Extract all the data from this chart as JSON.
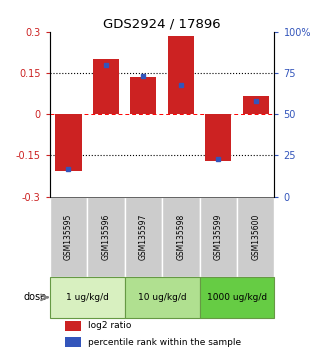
{
  "title": "GDS2924 / 17896",
  "samples": [
    "GSM135595",
    "GSM135596",
    "GSM135597",
    "GSM135598",
    "GSM135599",
    "GSM135600"
  ],
  "log2_ratio": [
    -0.205,
    0.2,
    0.135,
    0.285,
    -0.17,
    0.065
  ],
  "percentile": [
    17,
    80,
    73,
    68,
    23,
    58
  ],
  "dose_groups": [
    {
      "label": "1 ug/kg/d",
      "samples": [
        0,
        1
      ]
    },
    {
      "label": "10 ug/kg/d",
      "samples": [
        2,
        3
      ]
    },
    {
      "label": "1000 ug/kg/d",
      "samples": [
        4,
        5
      ]
    }
  ],
  "ylim_left": [
    -0.3,
    0.3
  ],
  "ylim_right": [
    0,
    100
  ],
  "yticks_left": [
    -0.3,
    -0.15,
    0,
    0.15,
    0.3
  ],
  "yticks_right": [
    0,
    25,
    50,
    75,
    100
  ],
  "ytick_labels_right": [
    "0",
    "25",
    "50",
    "75",
    "100%"
  ],
  "hlines": [
    0.15,
    -0.15
  ],
  "red_color": "#cc2222",
  "blue_color": "#3355bb",
  "bar_width": 0.7,
  "background_color": "#ffffff",
  "sample_bg_color": "#cccccc",
  "dose_colors": [
    "#d8f0c0",
    "#b0e090",
    "#66cc44"
  ],
  "sample_box_edge": "#999999",
  "dose_box_edge": "#669944"
}
